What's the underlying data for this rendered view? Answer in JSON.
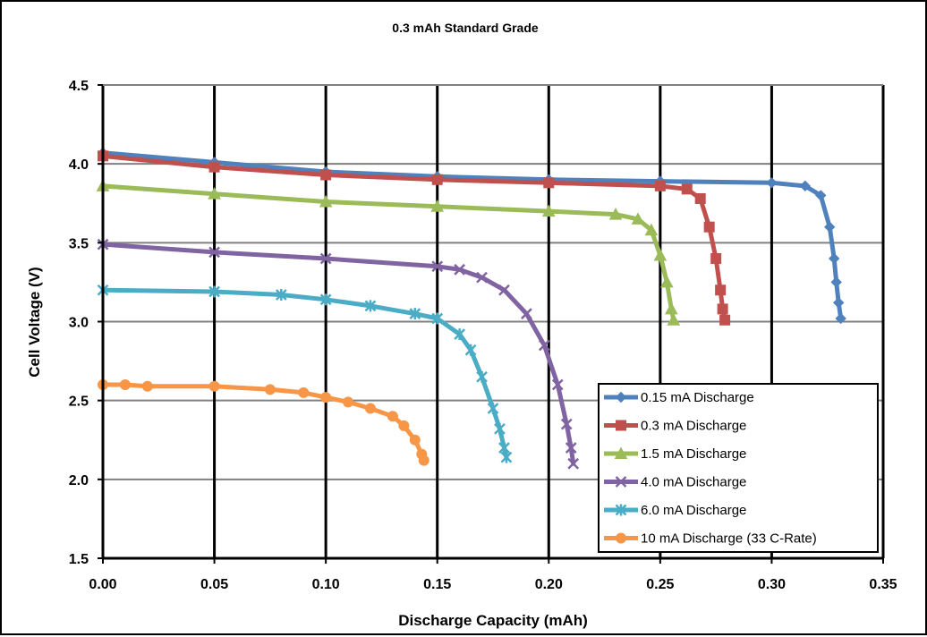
{
  "chart_data": {
    "type": "line",
    "title": "0.3 mAh Standard Grade",
    "xlabel": "Discharge Capacity (mAh)",
    "ylabel": "Cell Voltage (V)",
    "xlim": [
      0,
      0.35
    ],
    "ylim": [
      1.5,
      4.5
    ],
    "xticks": [
      "0.00",
      "0.05",
      "0.10",
      "0.15",
      "0.20",
      "0.25",
      "0.30",
      "0.35"
    ],
    "yticks": [
      "1.5",
      "2.0",
      "2.5",
      "3.0",
      "3.5",
      "4.0",
      "4.5"
    ],
    "grid": true,
    "legend_position": "bottom-right",
    "series": [
      {
        "name": "0.15 mA Discharge",
        "color": "#4f81bd",
        "marker": "diamond",
        "x": [
          0,
          0.05,
          0.1,
          0.15,
          0.2,
          0.25,
          0.3,
          0.315,
          0.322,
          0.326,
          0.328,
          0.329,
          0.33,
          0.331
        ],
        "y": [
          4.07,
          4.01,
          3.95,
          3.92,
          3.9,
          3.89,
          3.88,
          3.86,
          3.8,
          3.6,
          3.4,
          3.25,
          3.12,
          3.02
        ]
      },
      {
        "name": "0.3 mA Discharge",
        "color": "#c0504d",
        "marker": "square",
        "x": [
          0,
          0.05,
          0.1,
          0.15,
          0.2,
          0.25,
          0.262,
          0.268,
          0.272,
          0.275,
          0.277,
          0.278,
          0.279
        ],
        "y": [
          4.05,
          3.98,
          3.93,
          3.9,
          3.88,
          3.86,
          3.84,
          3.78,
          3.6,
          3.4,
          3.2,
          3.08,
          3.01
        ]
      },
      {
        "name": "1.5 mA Discharge",
        "color": "#9bbb59",
        "marker": "triangle",
        "x": [
          0,
          0.05,
          0.1,
          0.15,
          0.2,
          0.23,
          0.24,
          0.246,
          0.25,
          0.253,
          0.255,
          0.256
        ],
        "y": [
          3.86,
          3.81,
          3.76,
          3.73,
          3.7,
          3.68,
          3.65,
          3.58,
          3.42,
          3.25,
          3.08,
          3.01
        ]
      },
      {
        "name": "4.0 mA Discharge",
        "color": "#8064a2",
        "marker": "x",
        "x": [
          0,
          0.05,
          0.1,
          0.15,
          0.16,
          0.17,
          0.18,
          0.19,
          0.198,
          0.204,
          0.208,
          0.21,
          0.211
        ],
        "y": [
          3.49,
          3.44,
          3.4,
          3.35,
          3.33,
          3.28,
          3.2,
          3.05,
          2.85,
          2.6,
          2.35,
          2.2,
          2.1
        ]
      },
      {
        "name": "6.0 mA Discharge",
        "color": "#4bacc6",
        "marker": "star",
        "x": [
          0,
          0.05,
          0.08,
          0.1,
          0.12,
          0.14,
          0.15,
          0.16,
          0.165,
          0.17,
          0.175,
          0.178,
          0.18,
          0.181
        ],
        "y": [
          3.2,
          3.19,
          3.17,
          3.14,
          3.1,
          3.05,
          3.02,
          2.92,
          2.82,
          2.65,
          2.45,
          2.32,
          2.2,
          2.14
        ]
      },
      {
        "name": "10 mA Discharge (33 C-Rate)",
        "color": "#f79646",
        "marker": "circle",
        "x": [
          0,
          0.01,
          0.02,
          0.05,
          0.075,
          0.09,
          0.1,
          0.11,
          0.12,
          0.13,
          0.135,
          0.14,
          0.143,
          0.144
        ],
        "y": [
          2.6,
          2.6,
          2.59,
          2.59,
          2.57,
          2.55,
          2.52,
          2.49,
          2.45,
          2.4,
          2.34,
          2.25,
          2.16,
          2.12
        ]
      }
    ]
  }
}
